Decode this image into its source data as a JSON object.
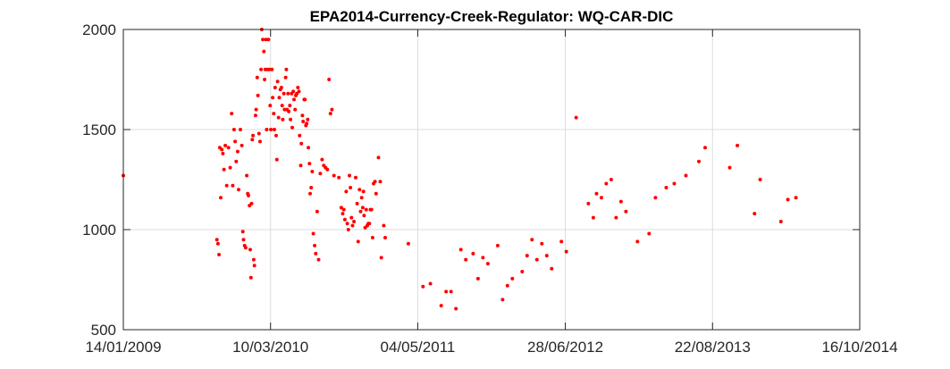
{
  "chart_data": {
    "type": "scatter",
    "title": "EPA2014-Currency-Creek-Regulator: WQ-CAR-DIC",
    "xlabel": "",
    "ylabel": "",
    "x_ticks": [
      "14/01/2009",
      "10/03/2010",
      "04/05/2011",
      "28/06/2012",
      "22/08/2013",
      "16/10/2014"
    ],
    "y_ticks": [
      500,
      1000,
      1500,
      2000
    ],
    "xlim": [
      "14/01/2009",
      "16/10/2014"
    ],
    "ylim": [
      500,
      2000
    ],
    "grid": true,
    "marker_color": "#ff0000",
    "series": [
      {
        "points": [
          [
            "14/01/2009",
            1270
          ],
          [
            "08/10/2009",
            950
          ],
          [
            "11/10/2009",
            930
          ],
          [
            "14/10/2009",
            875
          ],
          [
            "16/10/2009",
            1410
          ],
          [
            "19/10/2009",
            1160
          ],
          [
            "22/10/2009",
            1400
          ],
          [
            "25/10/2009",
            1380
          ],
          [
            "28/10/2009",
            1300
          ],
          [
            "01/11/2009",
            1420
          ],
          [
            "05/11/2009",
            1220
          ],
          [
            "10/11/2009",
            1410
          ],
          [
            "15/11/2009",
            1310
          ],
          [
            "19/11/2009",
            1580
          ],
          [
            "22/11/2009",
            1220
          ],
          [
            "26/11/2009",
            1500
          ],
          [
            "29/11/2009",
            1440
          ],
          [
            "02/12/2009",
            1340
          ],
          [
            "06/12/2009",
            1390
          ],
          [
            "09/12/2009",
            1200
          ],
          [
            "14/12/2009",
            1500
          ],
          [
            "18/12/2009",
            1420
          ],
          [
            "21/12/2009",
            990
          ],
          [
            "23/12/2009",
            950
          ],
          [
            "26/12/2009",
            920
          ],
          [
            "29/12/2009",
            910
          ],
          [
            "01/01/2010",
            1270
          ],
          [
            "04/01/2010",
            1180
          ],
          [
            "06/01/2010",
            1170
          ],
          [
            "09/01/2010",
            1120
          ],
          [
            "11/01/2010",
            900
          ],
          [
            "13/01/2010",
            760
          ],
          [
            "15/01/2010",
            1130
          ],
          [
            "17/01/2010",
            1450
          ],
          [
            "19/01/2010",
            1470
          ],
          [
            "21/01/2010",
            850
          ],
          [
            "23/01/2010",
            820
          ],
          [
            "26/01/2010",
            1570
          ],
          [
            "28/01/2010",
            1600
          ],
          [
            "31/01/2010",
            1760
          ],
          [
            "02/02/2010",
            1670
          ],
          [
            "05/02/2010",
            1480
          ],
          [
            "08/02/2010",
            1440
          ],
          [
            "11/02/2010",
            1800
          ],
          [
            "13/02/2010",
            2000
          ],
          [
            "16/02/2010",
            1950
          ],
          [
            "19/02/2010",
            1890
          ],
          [
            "21/02/2010",
            1750
          ],
          [
            "23/02/2010",
            1800
          ],
          [
            "25/02/2010",
            1950
          ],
          [
            "27/02/2010",
            1500
          ],
          [
            "01/03/2010",
            1800
          ],
          [
            "04/03/2010",
            1950
          ],
          [
            "06/03/2010",
            1800
          ],
          [
            "09/03/2010",
            1620
          ],
          [
            "11/03/2010",
            1500
          ],
          [
            "14/03/2010",
            1800
          ],
          [
            "16/03/2010",
            1660
          ],
          [
            "19/03/2010",
            1580
          ],
          [
            "21/03/2010",
            1500
          ],
          [
            "23/03/2010",
            1710
          ],
          [
            "26/03/2010",
            1470
          ],
          [
            "28/03/2010",
            1350
          ],
          [
            "30/03/2010",
            1740
          ],
          [
            "02/04/2010",
            1560
          ],
          [
            "04/04/2010",
            1660
          ],
          [
            "07/04/2010",
            1700
          ],
          [
            "10/04/2010",
            1710
          ],
          [
            "12/04/2010",
            1620
          ],
          [
            "14/04/2010",
            1550
          ],
          [
            "17/04/2010",
            1680
          ],
          [
            "19/04/2010",
            1600
          ],
          [
            "22/04/2010",
            1760
          ],
          [
            "24/04/2010",
            1800
          ],
          [
            "26/04/2010",
            1600
          ],
          [
            "29/04/2010",
            1680
          ],
          [
            "01/05/2010",
            1590
          ],
          [
            "04/05/2010",
            1620
          ],
          [
            "06/05/2010",
            1550
          ],
          [
            "09/05/2010",
            1680
          ],
          [
            "11/05/2010",
            1510
          ],
          [
            "14/05/2010",
            1690
          ],
          [
            "16/05/2010",
            1650
          ],
          [
            "19/05/2010",
            1600
          ],
          [
            "21/05/2010",
            1670
          ],
          [
            "24/05/2010",
            1680
          ],
          [
            "27/05/2010",
            1710
          ],
          [
            "30/05/2010",
            1690
          ],
          [
            "01/06/2010",
            1470
          ],
          [
            "04/06/2010",
            1320
          ],
          [
            "06/06/2010",
            1430
          ],
          [
            "09/06/2010",
            1570
          ],
          [
            "11/06/2010",
            1540
          ],
          [
            "14/06/2010",
            1650
          ],
          [
            "16/06/2010",
            1650
          ],
          [
            "19/06/2010",
            1520
          ],
          [
            "21/06/2010",
            1530
          ],
          [
            "24/06/2010",
            1550
          ],
          [
            "26/06/2010",
            1410
          ],
          [
            "29/06/2010",
            1330
          ],
          [
            "01/07/2010",
            1180
          ],
          [
            "04/07/2010",
            1210
          ],
          [
            "07/07/2010",
            1290
          ],
          [
            "10/07/2010",
            980
          ],
          [
            "14/07/2010",
            920
          ],
          [
            "17/07/2010",
            880
          ],
          [
            "21/07/2010",
            1090
          ],
          [
            "25/07/2010",
            850
          ],
          [
            "30/07/2010",
            1280
          ],
          [
            "04/08/2010",
            1350
          ],
          [
            "09/08/2010",
            1320
          ],
          [
            "14/08/2010",
            1310
          ],
          [
            "19/08/2010",
            1300
          ],
          [
            "24/08/2010",
            1750
          ],
          [
            "28/08/2010",
            1580
          ],
          [
            "01/09/2010",
            1600
          ],
          [
            "07/09/2010",
            1270
          ],
          [
            "21/09/2010",
            1260
          ],
          [
            "28/09/2010",
            1110
          ],
          [
            "02/10/2010",
            1080
          ],
          [
            "05/10/2010",
            1100
          ],
          [
            "08/10/2010",
            1050
          ],
          [
            "12/10/2010",
            1190
          ],
          [
            "15/10/2010",
            1030
          ],
          [
            "18/10/2010",
            1000
          ],
          [
            "21/10/2010",
            1270
          ],
          [
            "24/10/2010",
            1210
          ],
          [
            "27/10/2010",
            1060
          ],
          [
            "30/10/2010",
            1020
          ],
          [
            "03/11/2010",
            1040
          ],
          [
            "08/11/2010",
            1260
          ],
          [
            "12/11/2010",
            1130
          ],
          [
            "15/11/2010",
            940
          ],
          [
            "19/11/2010",
            1200
          ],
          [
            "22/11/2010",
            1090
          ],
          [
            "25/11/2010",
            1160
          ],
          [
            "28/11/2010",
            1110
          ],
          [
            "30/11/2010",
            1190
          ],
          [
            "02/12/2010",
            1070
          ],
          [
            "05/12/2010",
            1010
          ],
          [
            "08/12/2010",
            1100
          ],
          [
            "11/12/2010",
            1020
          ],
          [
            "14/12/2010",
            1030
          ],
          [
            "17/12/2010",
            1030
          ],
          [
            "20/12/2010",
            1100
          ],
          [
            "23/12/2010",
            1100
          ],
          [
            "26/12/2010",
            960
          ],
          [
            "29/12/2010",
            1230
          ],
          [
            "02/01/2011",
            1240
          ],
          [
            "05/01/2011",
            1180
          ],
          [
            "12/01/2011",
            1360
          ],
          [
            "17/01/2011",
            1240
          ],
          [
            "20/01/2011",
            860
          ],
          [
            "27/01/2011",
            1020
          ],
          [
            "31/01/2011",
            960
          ],
          [
            "07/04/2011",
            930
          ],
          [
            "19/05/2011",
            715
          ],
          [
            "09/06/2011",
            730
          ],
          [
            "10/07/2011",
            620
          ],
          [
            "24/07/2011",
            690
          ],
          [
            "07/08/2011",
            690
          ],
          [
            "21/08/2011",
            605
          ],
          [
            "04/09/2011",
            900
          ],
          [
            "18/09/2011",
            850
          ],
          [
            "09/10/2011",
            880
          ],
          [
            "23/10/2011",
            755
          ],
          [
            "06/11/2011",
            860
          ],
          [
            "20/11/2011",
            830
          ],
          [
            "18/12/2011",
            920
          ],
          [
            "01/01/2012",
            650
          ],
          [
            "15/01/2012",
            720
          ],
          [
            "29/01/2012",
            755
          ],
          [
            "26/02/2012",
            790
          ],
          [
            "11/03/2012",
            870
          ],
          [
            "25/03/2012",
            950
          ],
          [
            "08/04/2012",
            850
          ],
          [
            "22/04/2012",
            930
          ],
          [
            "06/05/2012",
            870
          ],
          [
            "20/05/2012",
            805
          ],
          [
            "17/06/2012",
            940
          ],
          [
            "01/07/2012",
            890
          ],
          [
            "29/07/2012",
            1560
          ],
          [
            "02/09/2012",
            1130
          ],
          [
            "16/09/2012",
            1060
          ],
          [
            "25/09/2012",
            1180
          ],
          [
            "09/10/2012",
            1160
          ],
          [
            "23/10/2012",
            1230
          ],
          [
            "06/11/2012",
            1250
          ],
          [
            "20/11/2012",
            1060
          ],
          [
            "04/12/2012",
            1140
          ],
          [
            "18/12/2012",
            1090
          ],
          [
            "20/01/2013",
            940
          ],
          [
            "22/02/2013",
            980
          ],
          [
            "12/03/2013",
            1160
          ],
          [
            "12/04/2013",
            1210
          ],
          [
            "05/05/2013",
            1230
          ],
          [
            "07/06/2013",
            1270
          ],
          [
            "14/07/2013",
            1340
          ],
          [
            "01/08/2013",
            1410
          ],
          [
            "10/10/2013",
            1310
          ],
          [
            "01/11/2013",
            1420
          ],
          [
            "20/12/2013",
            1080
          ],
          [
            "05/01/2014",
            1250
          ],
          [
            "05/03/2014",
            1040
          ],
          [
            "25/03/2014",
            1150
          ],
          [
            "17/04/2014",
            1160
          ]
        ]
      }
    ]
  }
}
